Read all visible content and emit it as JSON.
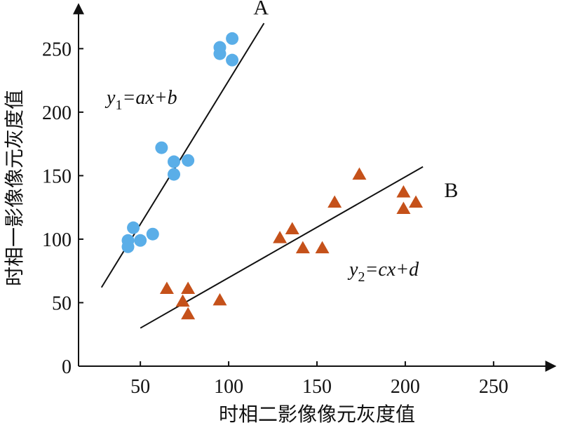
{
  "chart_data": {
    "type": "scatter",
    "title": "",
    "xlabel": "时相二影像像元灰度值",
    "ylabel": "时相一影像像元灰度值",
    "xlim": [
      15,
      285
    ],
    "ylim": [
      0,
      285
    ],
    "x_ticks": [
      50,
      100,
      150,
      200,
      250
    ],
    "y_ticks": [
      0,
      50,
      100,
      150,
      200,
      250
    ],
    "grid": false,
    "series": [
      {
        "name": "A",
        "marker": "circle",
        "color": "#5aaee8",
        "points": [
          [
            43,
            99
          ],
          [
            43,
            94
          ],
          [
            46,
            109
          ],
          [
            50,
            99
          ],
          [
            57,
            104
          ],
          [
            62,
            172
          ],
          [
            69,
            161
          ],
          [
            69,
            151
          ],
          [
            77,
            162
          ],
          [
            95,
            251
          ],
          [
            95,
            246
          ],
          [
            102,
            258
          ],
          [
            102,
            241
          ]
        ]
      },
      {
        "name": "B",
        "marker": "triangle",
        "color": "#c5511a",
        "points": [
          [
            65,
            61
          ],
          [
            74,
            51
          ],
          [
            77,
            61
          ],
          [
            77,
            41
          ],
          [
            95,
            52
          ],
          [
            129,
            101
          ],
          [
            136,
            108
          ],
          [
            142,
            93
          ],
          [
            153,
            93
          ],
          [
            160,
            129
          ],
          [
            174,
            151
          ],
          [
            199,
            137
          ],
          [
            199,
            124
          ],
          [
            206,
            129
          ]
        ]
      }
    ],
    "fit_lines": [
      {
        "series": "A",
        "equation_main": "y",
        "equation_sub": "1",
        "equation_rest": "=ax+b",
        "from": [
          28,
          62
        ],
        "to": [
          120,
          270
        ]
      },
      {
        "series": "B",
        "equation_main": "y",
        "equation_sub": "2",
        "equation_rest": "=cx+d",
        "from": [
          50,
          30
        ],
        "to": [
          210,
          157
        ]
      }
    ],
    "annotations": [
      {
        "text": "A",
        "at": [
          114,
          277
        ]
      },
      {
        "text": "B",
        "at": [
          222,
          133
        ]
      }
    ],
    "colors": {
      "axis": "#111111",
      "series_a": "#5aaee8",
      "series_b": "#c5511a"
    }
  }
}
